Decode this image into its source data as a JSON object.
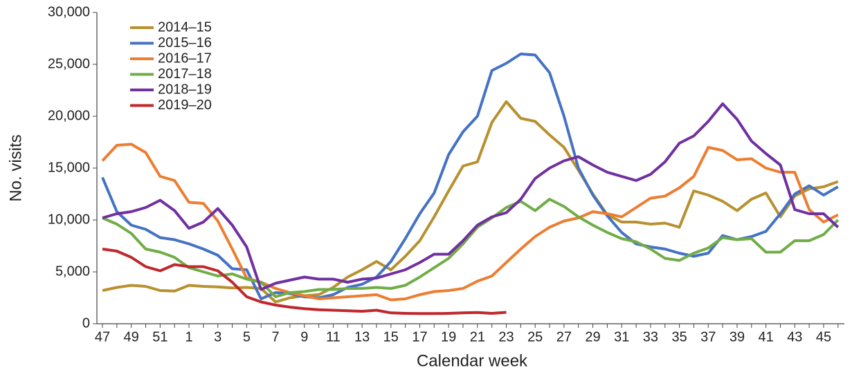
{
  "chart_data": {
    "type": "line",
    "x_label": "Calendar week",
    "y_label": "No. visits",
    "categories": [
      "47",
      null,
      "49",
      null,
      "51",
      null,
      "1",
      null,
      "3",
      null,
      "5",
      null,
      "7",
      null,
      "9",
      null,
      "11",
      null,
      "13",
      null,
      "15",
      null,
      "17",
      null,
      "19",
      null,
      "21",
      null,
      "23",
      null,
      "25",
      null,
      "27",
      null,
      "29",
      null,
      "31",
      null,
      "33",
      null,
      "35",
      null,
      "37",
      null,
      "39",
      null,
      "41",
      null,
      "43",
      null,
      "45",
      null
    ],
    "ylim": [
      0,
      30000
    ],
    "yticks": [
      0,
      {
        "value": 5000,
        "label": "5,000"
      },
      {
        "value": 10000,
        "label": "10,000"
      },
      {
        "value": 15000,
        "label": "15,000"
      },
      {
        "value": 20000,
        "label": "20,000"
      },
      {
        "value": 25000,
        "label": "25,000"
      },
      {
        "value": 30000,
        "label": "30,000"
      }
    ],
    "grid": false,
    "legend": "top-left",
    "series": [
      {
        "name": "2014–15",
        "color": "#b8912f",
        "values": [
          3200,
          3500,
          3700,
          3600,
          3200,
          3150,
          3700,
          3600,
          3550,
          3450,
          3500,
          3400,
          2100,
          2500,
          2700,
          2800,
          3500,
          4500,
          5200,
          6000,
          5200,
          6500,
          8000,
          10300,
          12800,
          15200,
          15600,
          19400,
          21400,
          19800,
          19500,
          18200,
          17000,
          14800,
          12500,
          10500,
          9800,
          9800,
          9600,
          9700,
          9300,
          12800,
          12400,
          11800,
          10900,
          12000,
          12600,
          10300,
          12300,
          13000,
          13200,
          13700
        ]
      },
      {
        "name": "2015–16",
        "color": "#4472c4",
        "values": [
          14100,
          10800,
          9500,
          9100,
          8300,
          8100,
          7700,
          7200,
          6600,
          5300,
          5200,
          2400,
          3000,
          2900,
          2600,
          2500,
          2800,
          3500,
          3800,
          4500,
          6000,
          8200,
          10600,
          12600,
          16300,
          18500,
          20000,
          24400,
          25100,
          26000,
          25900,
          24200,
          20000,
          15000,
          12400,
          10400,
          8800,
          7700,
          7400,
          7200,
          6800,
          6500,
          6800,
          8500,
          8100,
          8400,
          8900,
          10600,
          12500,
          13300,
          12400,
          13200
        ]
      },
      {
        "name": "2016–17",
        "color": "#ed7d31",
        "values": [
          15700,
          17200,
          17300,
          16500,
          14200,
          13800,
          11700,
          11600,
          9900,
          7200,
          4400,
          4000,
          3400,
          3000,
          2700,
          2400,
          2500,
          2600,
          2700,
          2800,
          2300,
          2400,
          2800,
          3100,
          3200,
          3400,
          4100,
          4600,
          5900,
          7200,
          8400,
          9300,
          9900,
          10200,
          10800,
          10600,
          10300,
          11200,
          12100,
          12300,
          13100,
          14200,
          17000,
          16700,
          15800,
          15900,
          15000,
          14600,
          14600,
          11000,
          9800,
          10500
        ]
      },
      {
        "name": "2017–18",
        "color": "#70ad47",
        "values": [
          10200,
          9600,
          8700,
          7200,
          6900,
          6400,
          5400,
          5000,
          4600,
          4800,
          4300,
          4000,
          2600,
          3000,
          3100,
          3300,
          3300,
          3400,
          3400,
          3500,
          3400,
          3700,
          4500,
          5400,
          6300,
          7700,
          9300,
          10200,
          11200,
          11800,
          10900,
          12000,
          11300,
          10300,
          9500,
          8800,
          8200,
          7900,
          7200,
          6300,
          6100,
          6800,
          7300,
          8300,
          8100,
          8200,
          6900,
          6900,
          8000,
          8000,
          8600,
          10000
        ]
      },
      {
        "name": "2018–19",
        "color": "#7030a0",
        "values": [
          10200,
          10600,
          10800,
          11200,
          11900,
          10900,
          9200,
          9800,
          11100,
          9500,
          7400,
          3300,
          3900,
          4200,
          4500,
          4300,
          4300,
          4000,
          4300,
          4400,
          4800,
          5200,
          5900,
          6700,
          6700,
          8000,
          9500,
          10300,
          10700,
          12000,
          14000,
          15000,
          15700,
          16100,
          15300,
          14600,
          14200,
          13800,
          14400,
          15600,
          17400,
          18100,
          19500,
          21200,
          19700,
          17600,
          16400,
          15300,
          11000,
          10600,
          10600,
          9300
        ]
      },
      {
        "name": "2019–20",
        "color": "#c0272d",
        "values": [
          7200,
          7000,
          6400,
          5500,
          5100,
          5700,
          5500,
          5500,
          5100,
          4000,
          2600,
          2100,
          1800,
          1600,
          1450,
          1350,
          1300,
          1250,
          1200,
          1300,
          1050,
          1000,
          980,
          980,
          1000,
          1050,
          1080,
          1000,
          1100,
          null,
          null,
          null,
          null,
          null,
          null,
          null,
          null,
          null,
          null,
          null,
          null,
          null,
          null,
          null,
          null,
          null,
          null,
          null,
          null,
          null,
          null,
          null
        ]
      }
    ]
  }
}
